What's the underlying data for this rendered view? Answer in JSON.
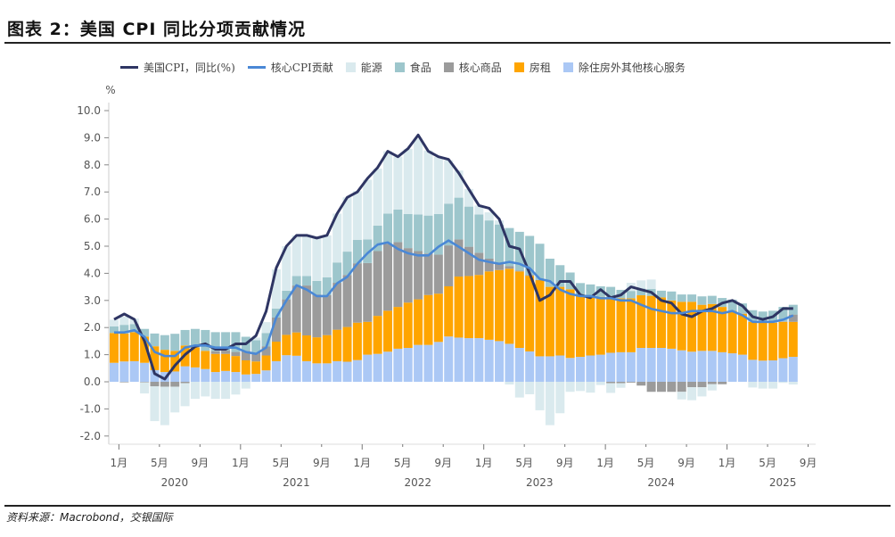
{
  "title": "图表 2：美国 CPI 同比分项贡献情况",
  "source": "资料来源：Macrobond，交银国际",
  "chart_data": {
    "type": "bar",
    "stacked": true,
    "ylabel": "%",
    "ylim": [
      -2.0,
      10.0
    ],
    "yticks": [
      "-2.0",
      "-1.0",
      "0.0",
      "1.0",
      "2.0",
      "3.0",
      "4.0",
      "5.0",
      "6.0",
      "7.0",
      "8.0",
      "9.0",
      "10.0"
    ],
    "x_start": "2019-12",
    "x_end": "2025-07",
    "xtick_labels": [
      "1月",
      "5月",
      "9月",
      "1月",
      "5月",
      "9月",
      "1月",
      "5月",
      "9月",
      "1月",
      "5月",
      "9月",
      "1月",
      "5月",
      "9月",
      "1月",
      "5月",
      "9月"
    ],
    "year_labels": [
      "2020",
      "2021",
      "2022",
      "2023",
      "2024",
      "2025"
    ],
    "legend_position": "top",
    "grid": false,
    "series": [
      {
        "name": "除住房外其他核心服务",
        "kind": "bar",
        "color": "#abc8f5",
        "values": [
          0.7,
          0.75,
          0.76,
          0.7,
          0.43,
          0.36,
          0.38,
          0.57,
          0.53,
          0.47,
          0.36,
          0.4,
          0.36,
          0.27,
          0.29,
          0.42,
          0.76,
          0.98,
          0.96,
          0.76,
          0.68,
          0.68,
          0.76,
          0.74,
          0.8,
          1.0,
          1.03,
          1.11,
          1.22,
          1.25,
          1.36,
          1.36,
          1.47,
          1.67,
          1.63,
          1.61,
          1.61,
          1.55,
          1.5,
          1.4,
          1.25,
          1.12,
          0.94,
          0.94,
          0.97,
          0.88,
          0.92,
          0.97,
          1.0,
          1.07,
          1.09,
          1.09,
          1.25,
          1.25,
          1.25,
          1.22,
          1.16,
          1.11,
          1.14,
          1.14,
          1.09,
          1.05,
          1.0,
          0.81,
          0.78,
          0.79,
          0.87,
          0.92
        ]
      },
      {
        "name": "房租",
        "kind": "bar",
        "color": "#ffa500",
        "values": [
          1.1,
          1.03,
          1.07,
          0.97,
          0.88,
          0.82,
          0.76,
          0.77,
          0.74,
          0.67,
          0.67,
          0.63,
          0.59,
          0.52,
          0.46,
          0.55,
          0.72,
          0.75,
          0.86,
          0.95,
          0.96,
          1.04,
          1.16,
          1.28,
          1.38,
          1.21,
          1.4,
          1.51,
          1.54,
          1.67,
          1.68,
          1.84,
          1.78,
          1.85,
          2.25,
          2.29,
          2.33,
          2.52,
          2.62,
          2.77,
          2.82,
          2.79,
          2.81,
          2.56,
          2.53,
          2.53,
          2.3,
          2.2,
          2.13,
          2.01,
          1.99,
          1.99,
          1.94,
          1.92,
          1.86,
          1.78,
          1.79,
          1.84,
          1.7,
          1.73,
          1.67,
          1.57,
          1.51,
          1.4,
          1.4,
          1.39,
          1.34,
          1.29
        ]
      },
      {
        "name": "核心商品",
        "kind": "bar",
        "color": "#9b9b9b",
        "values": [
          0,
          -0.02,
          0,
          -0.02,
          -0.17,
          -0.18,
          -0.18,
          -0.05,
          0,
          0,
          0.1,
          0.12,
          0.15,
          0.35,
          0.33,
          0.34,
          0.89,
          1.31,
          1.73,
          1.84,
          1.58,
          1.48,
          1.73,
          1.92,
          2.19,
          2.17,
          2.39,
          2.47,
          2.39,
          2.01,
          1.78,
          1.53,
          1.44,
          1.51,
          1.37,
          1.08,
          0.82,
          0.47,
          0.26,
          0.1,
          0.03,
          0.03,
          0.01,
          0,
          0,
          0,
          0,
          0,
          0,
          -0.05,
          -0.05,
          -0.03,
          -0.14,
          -0.37,
          -0.37,
          -0.37,
          -0.37,
          -0.2,
          -0.2,
          -0.09,
          -0.09,
          0,
          0,
          0,
          0,
          0,
          0.02,
          0.27
        ]
      },
      {
        "name": "食品",
        "kind": "bar",
        "color": "#9dc6cc",
        "values": [
          0.24,
          0.32,
          0.3,
          0.28,
          0.47,
          0.54,
          0.63,
          0.57,
          0.68,
          0.77,
          0.7,
          0.68,
          0.73,
          0.52,
          0.45,
          0.49,
          0.33,
          0.32,
          0.35,
          0.35,
          0.5,
          0.65,
          0.75,
          0.86,
          0.86,
          0.87,
          0.94,
          1.11,
          1.2,
          1.26,
          1.35,
          1.4,
          1.5,
          1.54,
          1.54,
          1.48,
          1.41,
          1.41,
          1.42,
          1.4,
          1.43,
          1.44,
          1.33,
          1.04,
          0.8,
          0.62,
          0.42,
          0.42,
          0.39,
          0.42,
          0.31,
          0.27,
          0.25,
          0.25,
          0.25,
          0.33,
          0.27,
          0.27,
          0.31,
          0.3,
          0.33,
          0.41,
          0.38,
          0.43,
          0.41,
          0.44,
          0.53,
          0.36
        ]
      },
      {
        "name": "能源",
        "kind": "bar",
        "color": "#daeaee",
        "values": [
          0.25,
          0.3,
          0.2,
          -0.41,
          -1.28,
          -1.42,
          -0.95,
          -0.85,
          -0.63,
          -0.54,
          -0.63,
          -0.63,
          -0.47,
          -0.25,
          0.1,
          0.4,
          1.45,
          1.64,
          1.5,
          1.5,
          1.58,
          1.55,
          1.8,
          2.0,
          1.8,
          2.2,
          2.1,
          2.3,
          1.95,
          2.4,
          2.8,
          2.4,
          2.1,
          1.6,
          1.0,
          0.65,
          0.33,
          0.3,
          0.15,
          -0.1,
          -0.58,
          -0.46,
          -1.05,
          -1.6,
          -1.16,
          -0.37,
          -0.34,
          -0.4,
          -0.12,
          -0.36,
          -0.17,
          0.3,
          0.3,
          0.35,
          0,
          0,
          -0.28,
          -0.48,
          -0.34,
          -0.23,
          0,
          0,
          0,
          -0.21,
          -0.25,
          -0.25,
          -0.04,
          -0.1
        ]
      },
      {
        "name": "美国CPI，同比(%)",
        "kind": "line",
        "color": "#2e3563",
        "values": [
          2.3,
          2.5,
          2.3,
          1.5,
          0.3,
          0.1,
          0.6,
          1.0,
          1.3,
          1.4,
          1.2,
          1.2,
          1.4,
          1.4,
          1.7,
          2.6,
          4.2,
          5.0,
          5.4,
          5.4,
          5.3,
          5.4,
          6.2,
          6.8,
          7.0,
          7.5,
          7.9,
          8.5,
          8.3,
          8.6,
          9.1,
          8.5,
          8.3,
          8.2,
          7.7,
          7.1,
          6.5,
          6.4,
          6.0,
          5.0,
          4.9,
          4.0,
          3.0,
          3.2,
          3.7,
          3.7,
          3.2,
          3.1,
          3.4,
          3.1,
          3.2,
          3.5,
          3.4,
          3.3,
          3.0,
          2.9,
          2.5,
          2.4,
          2.6,
          2.7,
          2.9,
          3.0,
          2.8,
          2.4,
          2.3,
          2.4,
          2.7,
          2.7
        ]
      },
      {
        "name": "核心CPI贡献",
        "kind": "line",
        "color": "#4a88d6",
        "values": [
          1.82,
          1.82,
          1.9,
          1.66,
          1.1,
          0.95,
          0.95,
          1.26,
          1.34,
          1.34,
          1.26,
          1.26,
          1.26,
          1.1,
          1.03,
          1.26,
          2.37,
          3.0,
          3.56,
          3.4,
          3.16,
          3.16,
          3.63,
          3.87,
          4.35,
          4.74,
          5.06,
          5.14,
          4.9,
          4.74,
          4.66,
          4.66,
          4.98,
          5.21,
          4.98,
          4.74,
          4.5,
          4.42,
          4.35,
          4.42,
          4.35,
          4.19,
          3.79,
          3.71,
          3.4,
          3.24,
          3.16,
          3.16,
          3.08,
          3.08,
          3.0,
          3.0,
          2.84,
          2.69,
          2.61,
          2.53,
          2.53,
          2.61,
          2.61,
          2.61,
          2.53,
          2.61,
          2.45,
          2.21,
          2.21,
          2.21,
          2.29,
          2.45
        ]
      }
    ]
  },
  "legend_order": [
    5,
    6,
    4,
    3,
    2,
    1,
    0
  ]
}
